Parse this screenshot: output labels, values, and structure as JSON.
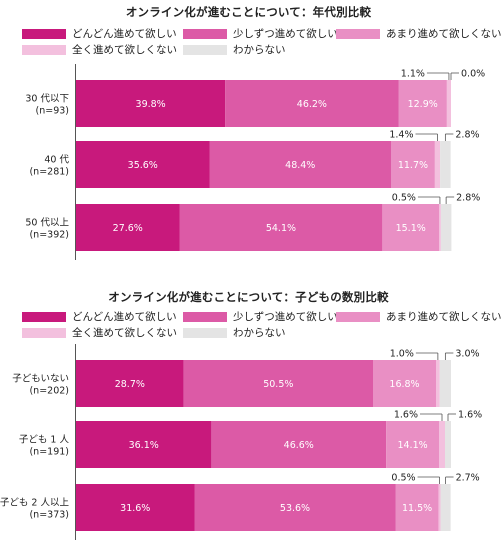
{
  "colors": {
    "dondon": "#c8197c",
    "sukoshi": "#dc5aa6",
    "amari": "#e98fc4",
    "mattaku": "#f3c0de",
    "wakaranai": "#e4e4e4"
  },
  "chart_data": [
    {
      "type": "bar",
      "stacked": true,
      "orientation": "horizontal",
      "unit": "%",
      "title": "オンライン化が進むことについて：年代別比較",
      "legend": [
        "どんどん進めて欲しい",
        "少しずつ進めて欲しい",
        "あまり進めて欲しくない",
        "全く進めて欲しくない",
        "わからない"
      ],
      "categories": [
        {
          "name": "30 代以下",
          "n": "(n=93)"
        },
        {
          "name": "40 代",
          "n": "(n=281)"
        },
        {
          "name": "50 代以上",
          "n": "(n=392)"
        }
      ],
      "series": [
        {
          "name": "どんどん進めて欲しい",
          "values": [
            39.8,
            35.6,
            27.6
          ]
        },
        {
          "name": "少しずつ進めて欲しい",
          "values": [
            46.2,
            48.4,
            54.1
          ]
        },
        {
          "name": "あまり進めて欲しくない",
          "values": [
            12.9,
            11.7,
            15.1
          ]
        },
        {
          "name": "全く進めて欲しくない",
          "values": [
            1.1,
            1.4,
            0.5
          ]
        },
        {
          "name": "わからない",
          "values": [
            0.0,
            2.8,
            2.8
          ]
        }
      ]
    },
    {
      "type": "bar",
      "stacked": true,
      "orientation": "horizontal",
      "unit": "%",
      "title": "オンライン化が進むことについて：子どもの数別比較",
      "legend": [
        "どんどん進めて欲しい",
        "少しずつ進めて欲しい",
        "あまり進めて欲しくない",
        "全く進めて欲しくない",
        "わからない"
      ],
      "categories": [
        {
          "name": "子どもいない",
          "n": "(n=202)"
        },
        {
          "name": "子ども 1 人",
          "n": "(n=191)"
        },
        {
          "name": "子ども 2 人以上",
          "n": "(n=373)"
        }
      ],
      "series": [
        {
          "name": "どんどん進めて欲しい",
          "values": [
            28.7,
            36.1,
            31.6
          ]
        },
        {
          "name": "少しずつ進めて欲しい",
          "values": [
            50.5,
            46.6,
            53.6
          ]
        },
        {
          "name": "あまり進めて欲しくない",
          "values": [
            16.8,
            14.1,
            11.5
          ]
        },
        {
          "name": "全く進めて欲しくない",
          "values": [
            1.0,
            1.6,
            0.5
          ]
        },
        {
          "name": "わからない",
          "values": [
            3.0,
            1.6,
            2.7
          ]
        }
      ]
    }
  ]
}
